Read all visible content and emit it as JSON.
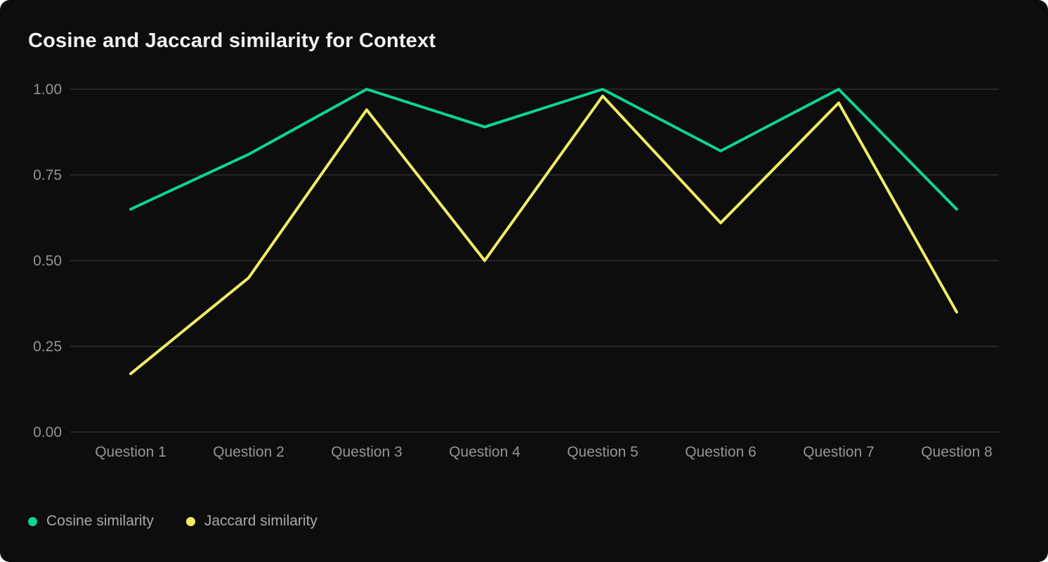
{
  "title": "Cosine and Jaccard similarity for Context",
  "chart_data": {
    "type": "line",
    "title": "Cosine and Jaccard similarity for Context",
    "categories": [
      "Question 1",
      "Question 2",
      "Question 3",
      "Question 4",
      "Question 5",
      "Question 6",
      "Question 7",
      "Question 8"
    ],
    "series": [
      {
        "name": "Cosine similarity",
        "color": "#0dd493",
        "values": [
          0.65,
          0.81,
          1.0,
          0.89,
          1.0,
          0.82,
          1.0,
          0.65
        ]
      },
      {
        "name": "Jaccard similarity",
        "color": "#f2ec64",
        "values": [
          0.17,
          0.45,
          0.94,
          0.5,
          0.98,
          0.61,
          0.96,
          0.35
        ]
      }
    ],
    "xlabel": "",
    "ylabel": "",
    "ylim": [
      0,
      1
    ],
    "yticks": [
      1.0,
      0.75,
      0.5,
      0.25,
      0.0
    ],
    "ytick_labels": [
      "1.00",
      "0.75",
      "0.50",
      "0.25",
      "0.00"
    ],
    "grid": "horizontal",
    "legend_position": "bottom-left"
  },
  "colors": {
    "card_background": "#0c0d0c",
    "title_text": "#f2f2f2",
    "axis_label": "#949494",
    "gridline": "#2e2e2e",
    "legend_text": "#a9a9a9"
  }
}
